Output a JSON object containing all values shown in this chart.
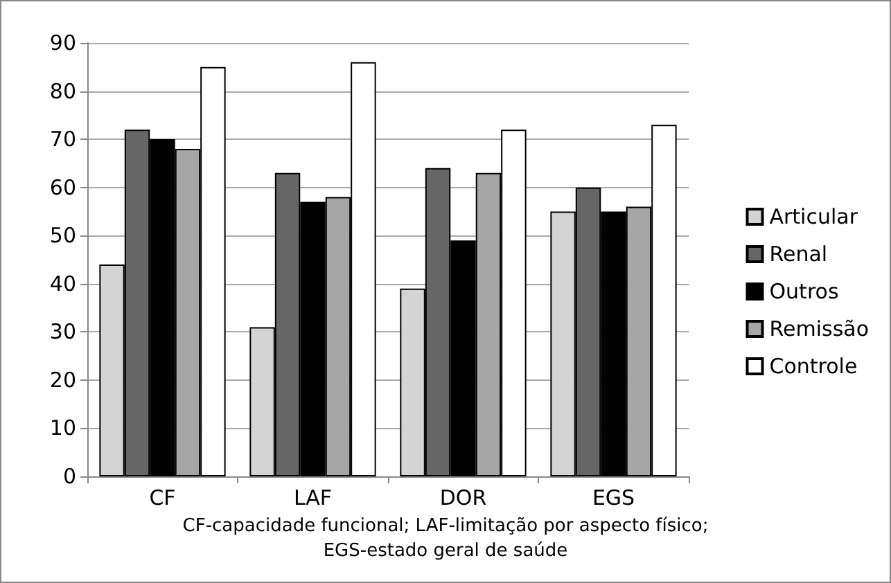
{
  "chart_data": {
    "type": "bar",
    "categories": [
      "CF",
      "LAF",
      "DOR",
      "EGS"
    ],
    "series": [
      {
        "name": "Articular",
        "color": "#d4d4d4",
        "values": [
          44,
          31,
          39,
          55
        ]
      },
      {
        "name": "Renal",
        "color": "#666666",
        "values": [
          72,
          63,
          64,
          60
        ]
      },
      {
        "name": "Outros",
        "color": "#000000",
        "values": [
          70,
          57,
          49,
          55
        ]
      },
      {
        "name": "Remissão",
        "color": "#a6a6a6",
        "values": [
          68,
          58,
          63,
          56
        ]
      },
      {
        "name": "Controle",
        "color": "#ffffff",
        "values": [
          85,
          86,
          72,
          73
        ]
      }
    ],
    "ylim": [
      0,
      90
    ],
    "yticks": [
      0,
      10,
      20,
      30,
      40,
      50,
      60,
      70,
      80,
      90
    ],
    "grid": "y",
    "legend": "right",
    "annotations": [
      "CF-capacidade funcional; LAF-limitação por aspecto físico;\nEGS-estado geral de saúde"
    ]
  }
}
